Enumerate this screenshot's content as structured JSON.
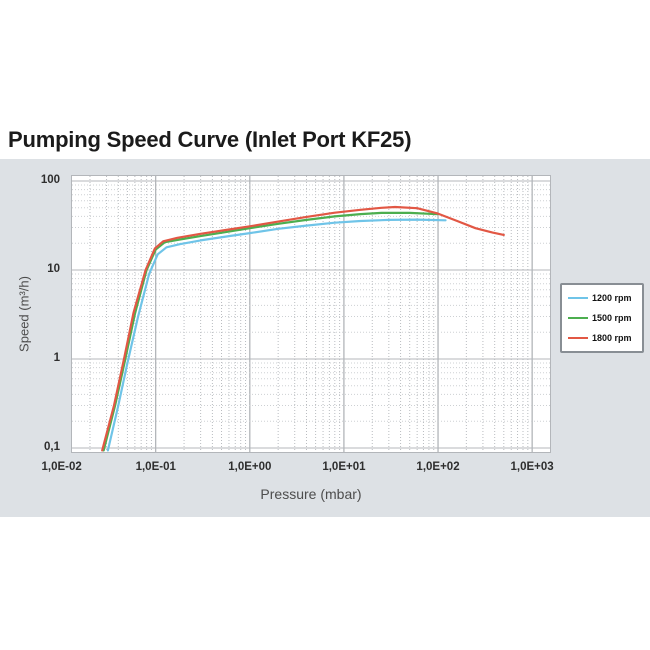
{
  "title": "Pumping Speed Curve (Inlet Port KF25)",
  "chart_data": {
    "type": "line",
    "title": "Pumping Speed Curve (Inlet Port KF25)",
    "xlabel": "Pressure (mbar)",
    "ylabel": "Speed (m³/h)",
    "x_scale": "log",
    "y_scale": "log",
    "grid": {
      "major": true,
      "minor": true
    },
    "legend_position": "right",
    "x_tick_values": [
      0.01,
      0.1,
      1,
      10,
      100,
      1000
    ],
    "x_tick_labels": [
      "1,0E-02",
      "1,0E-01",
      "1,0E+00",
      "1,0E+01",
      "1,0E+02",
      "1,0E+03"
    ],
    "y_tick_values": [
      100,
      10,
      1,
      0.1
    ],
    "y_tick_labels": [
      "100",
      "10",
      "1",
      "0,1"
    ],
    "x_range_log": [
      -1.89,
      3.19
    ],
    "y_range_log": [
      -1.045,
      2.056
    ],
    "series": [
      {
        "name": "1200 rpm",
        "color": "#6fc4e8",
        "points": [
          [
            0.031,
            0.094
          ],
          [
            0.04,
            0.3
          ],
          [
            0.05,
            0.9
          ],
          [
            0.065,
            3
          ],
          [
            0.085,
            9
          ],
          [
            0.105,
            15
          ],
          [
            0.13,
            18
          ],
          [
            0.18,
            19.5
          ],
          [
            0.3,
            21.5
          ],
          [
            0.6,
            24
          ],
          [
            1,
            26
          ],
          [
            2,
            29
          ],
          [
            4,
            31.5
          ],
          [
            8,
            34
          ],
          [
            15,
            35.5
          ],
          [
            30,
            36.5
          ],
          [
            60,
            36.8
          ],
          [
            120,
            36.2
          ]
        ]
      },
      {
        "name": "1500 rpm",
        "color": "#4cae4f",
        "points": [
          [
            0.028,
            0.094
          ],
          [
            0.037,
            0.3
          ],
          [
            0.047,
            0.95
          ],
          [
            0.06,
            3.2
          ],
          [
            0.08,
            10
          ],
          [
            0.1,
            17
          ],
          [
            0.125,
            20.5
          ],
          [
            0.18,
            22
          ],
          [
            0.3,
            24
          ],
          [
            0.6,
            27
          ],
          [
            1,
            29.5
          ],
          [
            2,
            33
          ],
          [
            4,
            36.5
          ],
          [
            8,
            40
          ],
          [
            15,
            42.5
          ],
          [
            25,
            43.8
          ],
          [
            50,
            43.8
          ],
          [
            100,
            42.3
          ]
        ]
      },
      {
        "name": "1800 rpm",
        "color": "#e25744",
        "points": [
          [
            0.027,
            0.094
          ],
          [
            0.036,
            0.3
          ],
          [
            0.046,
            1
          ],
          [
            0.058,
            3.3
          ],
          [
            0.078,
            10
          ],
          [
            0.098,
            17.5
          ],
          [
            0.12,
            21
          ],
          [
            0.17,
            23
          ],
          [
            0.3,
            25.5
          ],
          [
            0.6,
            28.5
          ],
          [
            1,
            31
          ],
          [
            2,
            35
          ],
          [
            4,
            39.5
          ],
          [
            8,
            44
          ],
          [
            15,
            47.5
          ],
          [
            25,
            50
          ],
          [
            35,
            51
          ],
          [
            60,
            49.5
          ],
          [
            100,
            43
          ],
          [
            160,
            35.5
          ],
          [
            250,
            29.5
          ],
          [
            380,
            26.3
          ],
          [
            500,
            24.8
          ]
        ]
      }
    ]
  }
}
